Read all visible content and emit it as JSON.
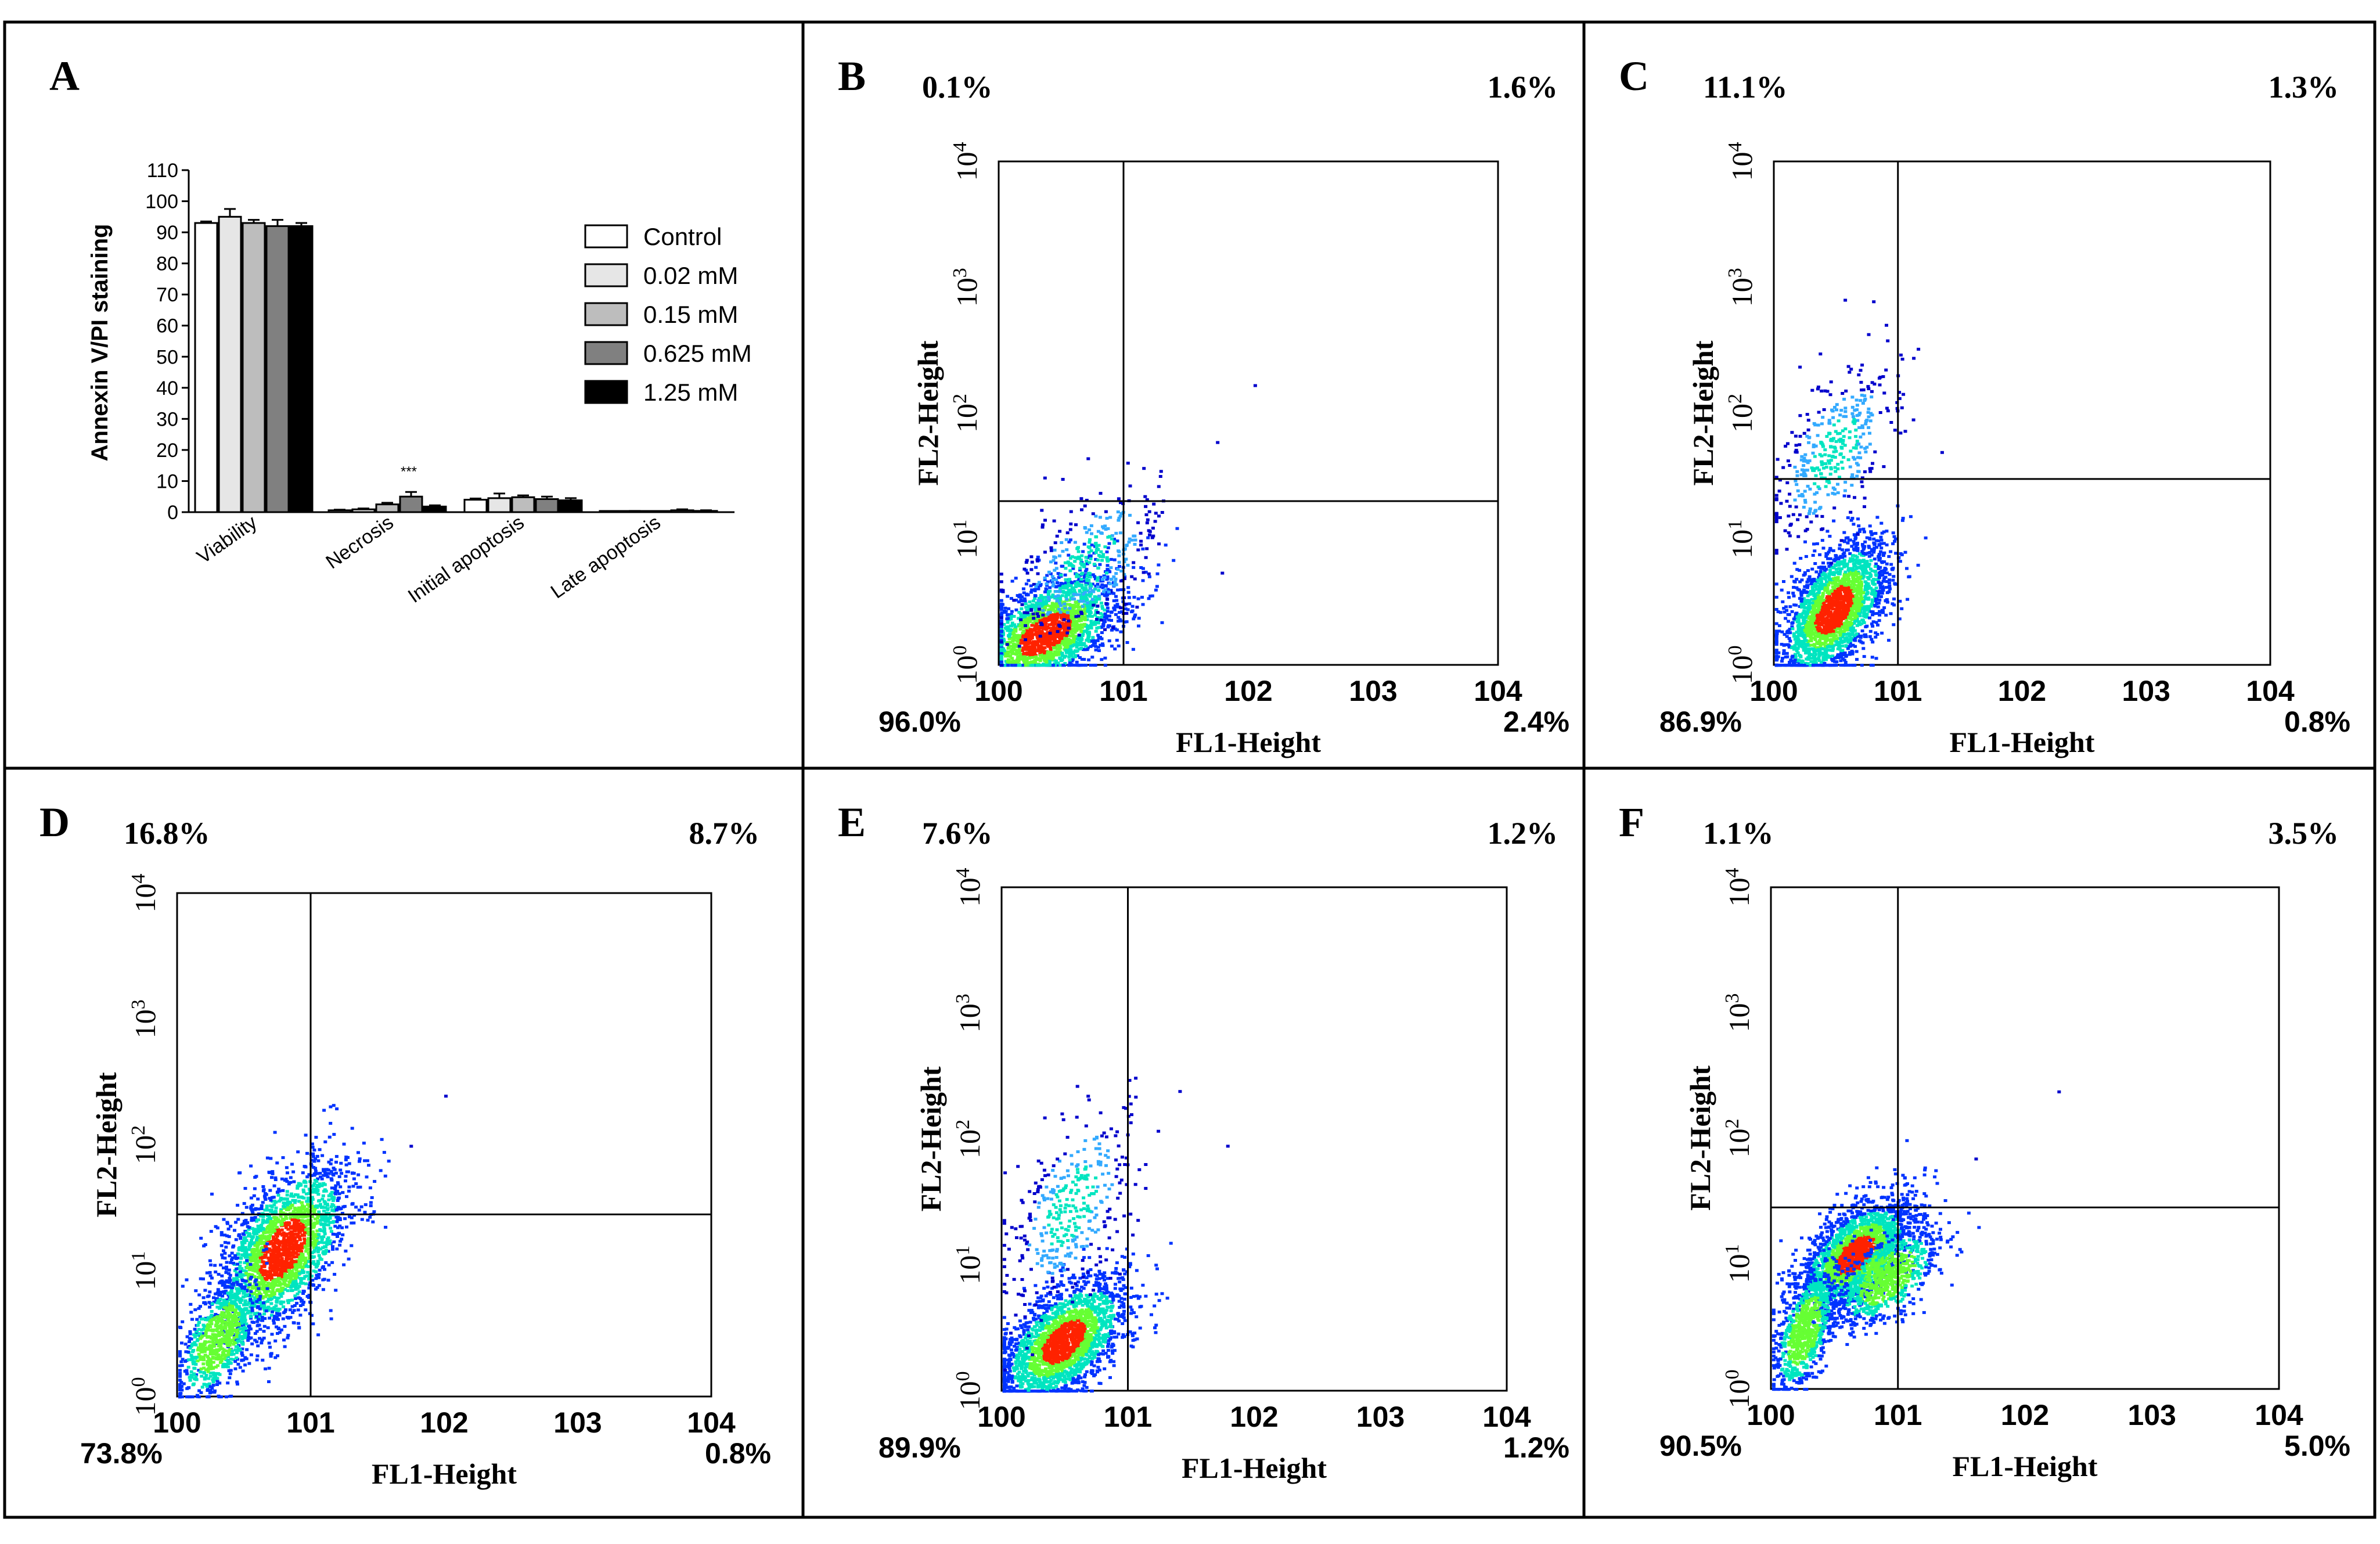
{
  "chart_data": [
    {
      "id": "A",
      "panel_label": "A",
      "type": "bar",
      "ylabel": "Annexin V/PI staining",
      "ylim": [
        0,
        110
      ],
      "yticks": [
        "0",
        "10",
        "20",
        "30",
        "40",
        "50",
        "60",
        "70",
        "80",
        "90",
        "100",
        "110"
      ],
      "categories": [
        "Viability",
        "Necrosis",
        "Initial apoptosis",
        "Late apoptosis"
      ],
      "series": [
        {
          "name": "Control",
          "color": "#ffffff",
          "values": [
            93,
            0.6,
            4.0,
            0.2
          ],
          "errors": [
            0.5,
            0.2,
            0.4,
            0.1
          ]
        },
        {
          "name": "0.02 mM",
          "color": "#e6e6e6",
          "values": [
            95,
            0.9,
            4.5,
            0.3
          ],
          "errors": [
            2.5,
            0.3,
            1.5,
            0.1
          ]
        },
        {
          "name": "0.15 mM",
          "color": "#bdbdbd",
          "values": [
            93,
            2.5,
            4.8,
            0.2
          ],
          "errors": [
            1.0,
            0.5,
            0.6,
            0.1
          ]
        },
        {
          "name": "0.625 mM",
          "color": "#808080",
          "values": [
            92,
            5.0,
            4.2,
            0.6
          ],
          "errors": [
            2.0,
            1.5,
            0.8,
            0.3
          ]
        },
        {
          "name": "1.25 mM",
          "color": "#000000",
          "values": [
            92,
            1.8,
            3.8,
            0.4
          ],
          "errors": [
            1.0,
            0.4,
            0.7,
            0.2
          ]
        }
      ],
      "annotations": [
        {
          "text": "***",
          "category": "Necrosis",
          "series": "0.625 mM"
        }
      ]
    },
    {
      "id": "B",
      "panel_label": "B",
      "type": "scatter",
      "xlabel": "FL1-Height",
      "ylabel": "FL2-Height",
      "xlim": [
        1,
        10000
      ],
      "ylim": [
        1,
        10000
      ],
      "xticks": [
        "100",
        "101",
        "102",
        "103",
        "104"
      ],
      "quadrants": {
        "upper_left": "0.1%",
        "upper_right": "1.6%",
        "lower_left": "96.0%",
        "lower_right": "2.4%"
      },
      "gate_x": 10,
      "gate_y": 20,
      "clusters": [
        {
          "cx": 2.3,
          "cy": 1.8,
          "spread_x": 0.3,
          "spread_y": 0.25,
          "density": "high"
        },
        {
          "cx": 5.0,
          "cy": 6.5,
          "spread_x": 0.3,
          "spread_y": 0.3,
          "density": "low"
        }
      ],
      "outliers": [
        [
          110,
          170
        ],
        [
          55,
          60
        ],
        [
          60,
          5.5
        ]
      ]
    },
    {
      "id": "C",
      "panel_label": "C",
      "type": "scatter",
      "xlabel": "FL1-Height",
      "ylabel": "FL2-Height",
      "xlim": [
        1,
        10000
      ],
      "ylim": [
        1,
        10000
      ],
      "xticks": [
        "100",
        "101",
        "102",
        "103",
        "104"
      ],
      "quadrants": {
        "upper_left": "11.1%",
        "upper_right": "1.3%",
        "lower_left": "86.9%",
        "lower_right": "0.8%"
      },
      "gate_x": 10,
      "gate_y": 30,
      "clusters": [
        {
          "cx": 3.0,
          "cy": 2.8,
          "spread_x": 0.22,
          "spread_y": 0.28,
          "density": "high"
        },
        {
          "cx": 3.0,
          "cy": 50,
          "spread_x": 0.25,
          "spread_y": 0.35,
          "density": "low"
        }
      ],
      "outliers": [
        [
          22,
          50
        ],
        [
          13,
          280
        ]
      ]
    },
    {
      "id": "D",
      "panel_label": "D",
      "type": "scatter",
      "xlabel": "FL1-Height",
      "ylabel": "FL2-Height",
      "xlim": [
        1,
        10000
      ],
      "ylim": [
        1,
        10000
      ],
      "xticks": [
        "100",
        "101",
        "102",
        "103",
        "104"
      ],
      "quadrants": {
        "upper_left": "16.8%",
        "upper_right": "8.7%",
        "lower_left": "73.8%",
        "lower_right": "0.8%"
      },
      "gate_x": 10,
      "gate_y": 28,
      "clusters": [
        {
          "cx": 6.0,
          "cy": 15,
          "spread_x": 0.25,
          "spread_y": 0.35,
          "density": "high"
        },
        {
          "cx": 2.0,
          "cy": 3.0,
          "spread_x": 0.15,
          "spread_y": 0.25,
          "density": "medium"
        }
      ],
      "outliers": [
        [
          100,
          250
        ],
        [
          55,
          100
        ]
      ]
    },
    {
      "id": "E",
      "panel_label": "E",
      "type": "scatter",
      "xlabel": "FL1-Height",
      "ylabel": "FL2-Height",
      "xlim": [
        1,
        10000
      ],
      "ylim": [
        1,
        10000
      ],
      "xticks": [
        "100",
        "101",
        "102",
        "103",
        "104"
      ],
      "quadrants": {
        "upper_left": "7.6%",
        "upper_right": "1.2%",
        "lower_left": "89.9%",
        "lower_right": "1.2%"
      },
      "gate_x": 10,
      "gate_y": 10000,
      "clusters": [
        {
          "cx": 3.0,
          "cy": 2.5,
          "spread_x": 0.25,
          "spread_y": 0.25,
          "density": "high"
        },
        {
          "cx": 3.5,
          "cy": 30,
          "spread_x": 0.25,
          "spread_y": 0.4,
          "density": "low"
        }
      ],
      "outliers": [
        [
          60,
          90
        ],
        [
          10,
          300
        ]
      ]
    },
    {
      "id": "F",
      "panel_label": "F",
      "type": "scatter",
      "xlabel": "FL1-Height",
      "ylabel": "FL2-Height",
      "xlim": [
        1,
        10000
      ],
      "ylim": [
        1,
        10000
      ],
      "xticks": [
        "100",
        "101",
        "102",
        "103",
        "104"
      ],
      "quadrants": {
        "upper_left": "1.1%",
        "upper_right": "3.5%",
        "lower_left": "90.5%",
        "lower_right": "5.0%"
      },
      "gate_x": 10,
      "gate_y": 28,
      "clusters": [
        {
          "cx": 4.5,
          "cy": 12,
          "spread_x": 0.22,
          "spread_y": 0.22,
          "density": "high"
        },
        {
          "cx": 8.0,
          "cy": 8.0,
          "spread_x": 0.2,
          "spread_y": 0.2,
          "density": "medium"
        },
        {
          "cx": 1.8,
          "cy": 3.0,
          "spread_x": 0.12,
          "spread_y": 0.25,
          "density": "medium"
        }
      ],
      "outliers": [
        [
          180,
          240
        ],
        [
          40,
          70
        ]
      ]
    }
  ]
}
